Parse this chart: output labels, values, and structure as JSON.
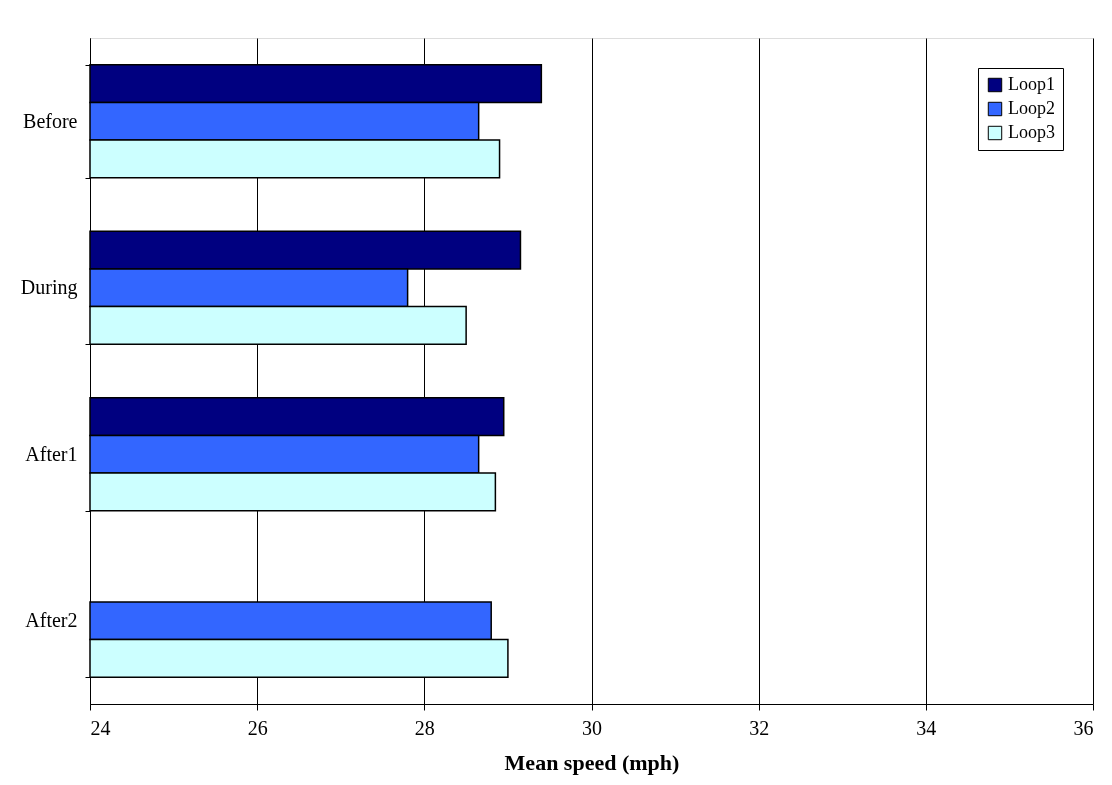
{
  "chart_data": {
    "type": "bar",
    "orientation": "horizontal",
    "xlabel": "Mean speed (mph)",
    "categories": [
      "Before",
      "During",
      "After1",
      "After2"
    ],
    "series": [
      {
        "name": "Loop1",
        "color": "#000080",
        "values": [
          29.4,
          29.15,
          28.95,
          null
        ]
      },
      {
        "name": "Loop2",
        "color": "#3366ff",
        "values": [
          28.65,
          27.8,
          28.65,
          28.8
        ]
      },
      {
        "name": "Loop3",
        "color": "#ccffff",
        "values": [
          28.9,
          28.5,
          28.85,
          29.0
        ]
      }
    ],
    "xlim": [
      24,
      36
    ],
    "xticks": [
      24,
      26,
      28,
      30,
      32,
      34,
      36
    ],
    "grid": "x",
    "legend": "top right"
  }
}
